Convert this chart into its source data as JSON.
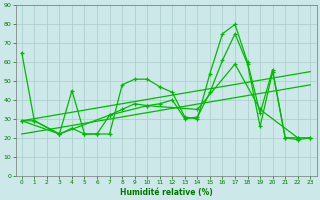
{
  "xlabel": "Humidité relative (%)",
  "background_color": "#cce8e8",
  "grid_color": "#aacccc",
  "line_color": "#00bb00",
  "xlim": [
    -0.5,
    23.5
  ],
  "ylim": [
    0,
    90
  ],
  "xticks": [
    0,
    1,
    2,
    3,
    4,
    5,
    6,
    7,
    8,
    9,
    10,
    11,
    12,
    13,
    14,
    15,
    16,
    17,
    18,
    19,
    20,
    21,
    22,
    23
  ],
  "yticks": [
    0,
    10,
    20,
    30,
    40,
    50,
    60,
    70,
    80,
    90
  ],
  "series1_x": [
    0,
    1,
    3,
    4,
    5,
    6,
    7,
    8,
    9,
    10,
    11,
    12,
    13,
    14,
    15,
    16,
    17,
    18,
    19,
    20,
    21,
    22,
    23
  ],
  "series1_y": [
    65,
    29,
    22,
    45,
    22,
    22,
    22,
    48,
    51,
    51,
    47,
    44,
    31,
    30,
    54,
    75,
    80,
    60,
    33,
    56,
    20,
    20,
    20
  ],
  "series2_x": [
    0,
    1,
    3,
    4,
    5,
    6,
    7,
    8,
    9,
    10,
    11,
    12,
    13,
    14,
    15,
    16,
    17,
    18,
    19,
    20,
    21,
    22,
    23
  ],
  "series2_y": [
    29,
    29,
    22,
    25,
    22,
    22,
    32,
    35,
    38,
    37,
    38,
    40,
    30,
    31,
    44,
    61,
    75,
    59,
    26,
    55,
    20,
    19,
    20
  ],
  "series3_x": [
    0,
    3,
    7,
    10,
    14,
    17,
    19,
    22
  ],
  "series3_y": [
    29,
    22,
    32,
    37,
    35,
    59,
    35,
    20
  ],
  "trend1_x": [
    0,
    23
  ],
  "trend1_y": [
    29,
    55
  ],
  "trend2_x": [
    0,
    23
  ],
  "trend2_y": [
    22,
    48
  ]
}
